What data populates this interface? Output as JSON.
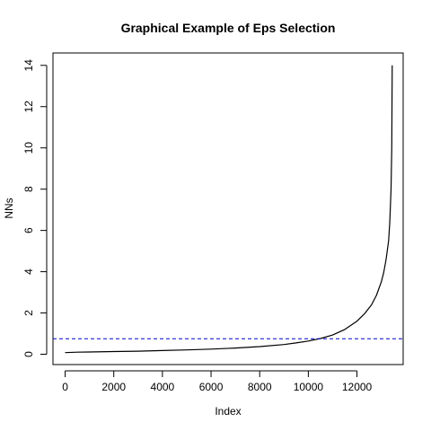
{
  "chart_data": {
    "type": "line",
    "title": "Graphical Example of Eps Selection",
    "xlabel": "Index",
    "ylabel": "NNs",
    "xlim": [
      -500,
      13900
    ],
    "ylim": [
      -0.5,
      14.6
    ],
    "x_ticks": [
      0,
      2000,
      4000,
      6000,
      8000,
      10000,
      12000
    ],
    "y_ticks": [
      0,
      2,
      4,
      6,
      8,
      10,
      12,
      14
    ],
    "x_tick_labels": [
      "0",
      "2000",
      "4000",
      "6000",
      "8000",
      "10000",
      "12000"
    ],
    "y_tick_labels": [
      "0",
      "2",
      "4",
      "6",
      "8",
      "10",
      "12",
      "14"
    ],
    "grid": false,
    "legend": "none",
    "series": [
      {
        "color": "#000000",
        "line_style": "solid",
        "x": [
          0,
          500,
          1000,
          2000,
          3000,
          4000,
          5000,
          6000,
          7000,
          8000,
          9000,
          9500,
          10000,
          10500,
          11000,
          11500,
          12000,
          12300,
          12600,
          12800,
          13000,
          13100,
          13200,
          13300,
          13350,
          13400,
          13430,
          13450
        ],
        "y": [
          0.08,
          0.1,
          0.11,
          0.13,
          0.15,
          0.18,
          0.21,
          0.25,
          0.3,
          0.37,
          0.47,
          0.55,
          0.64,
          0.76,
          0.93,
          1.2,
          1.6,
          1.95,
          2.4,
          2.85,
          3.5,
          3.95,
          4.6,
          5.5,
          6.4,
          8.0,
          10.0,
          14.0
        ]
      }
    ],
    "hlines": [
      {
        "y": 0.75,
        "color": "#0000cc",
        "line_style": "dashed"
      }
    ]
  }
}
